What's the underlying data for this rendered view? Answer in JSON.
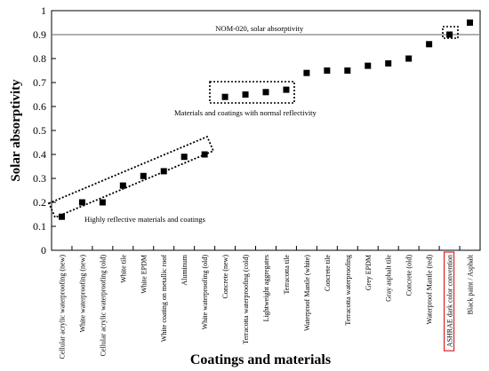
{
  "chart_data": {
    "type": "scatter",
    "xlabel": "Coatings and materials",
    "ylabel": "Solar absorptivity",
    "ylim": [
      0,
      1
    ],
    "yticks": [
      "0",
      "0.1",
      "0.2",
      "0.3",
      "0.4",
      "0.5",
      "0.6",
      "0.7",
      "0.8",
      "0.9",
      "1"
    ],
    "grid": false,
    "categories": [
      "Cellular acrylic waterproofing (new)",
      "White waterproofing (new)",
      "Cellular acrylic waterproofing (old)",
      "White tile",
      "White EPDM",
      "White coating on metallic roof",
      "Aluminum",
      "White waterproofing (old)",
      "Concrete (new)",
      "Terracotta waterproofing (cold)",
      "Lightweight aggregates",
      "Terracotta tile",
      "Waterproof Mantle (white)",
      "Concrete tile",
      "Terracotta waterproofing",
      "Grey EPDM",
      "Gray asphalt tile",
      "Concrete (old)",
      "Waterproof Mantle (red)",
      "ASHRAE dark color convention",
      "Black paint / Asphalt"
    ],
    "values": [
      0.14,
      0.2,
      0.2,
      0.27,
      0.31,
      0.33,
      0.39,
      0.4,
      0.64,
      0.65,
      0.66,
      0.67,
      0.74,
      0.75,
      0.75,
      0.77,
      0.78,
      0.8,
      0.86,
      0.9,
      0.95
    ],
    "reference_line": {
      "value": 0.9,
      "label": "NOM-020, solar absorptivity"
    },
    "annotations": [
      "Highly reflective materials and coatings",
      "Materials and coatings with normal reflectivity"
    ],
    "highlighted_category": "ASHRAE dark color convention",
    "highlight_color": "#e02020",
    "marker_color": "#000000"
  }
}
